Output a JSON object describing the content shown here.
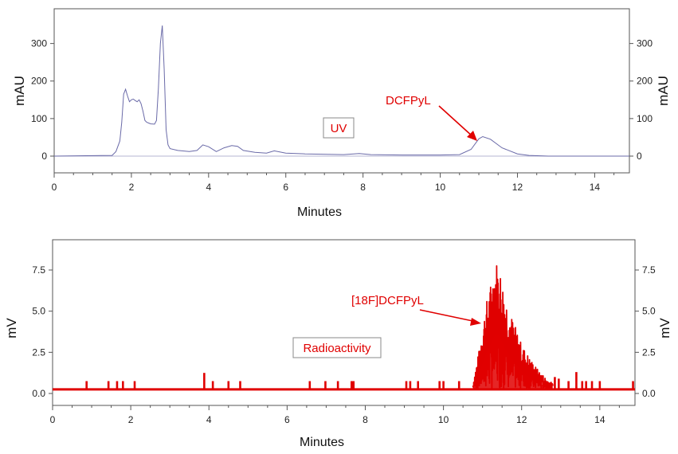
{
  "chart_data": [
    {
      "type": "line",
      "ylabel_left": "mAU",
      "ylabel_right": "mAU",
      "xlabel": "Minutes",
      "xlim": [
        0,
        14.9
      ],
      "ylim": [
        -45,
        375
      ],
      "xticks": [
        "0",
        "2",
        "4",
        "6",
        "8",
        "10",
        "12",
        "14"
      ],
      "yticks": [
        "0",
        "100",
        "200",
        "300"
      ],
      "box_label": "UV",
      "annotation": {
        "text": "DCFPyL",
        "x": 11.1,
        "y": 52
      },
      "colors": {
        "line": "#6a6aa8",
        "annotation": "#e00000"
      },
      "series": [
        {
          "x": [
            0,
            1.5,
            1.6,
            1.7,
            1.75,
            1.8,
            1.85,
            1.9,
            1.95,
            2.0,
            2.05,
            2.1,
            2.15,
            2.2,
            2.25,
            2.3,
            2.35,
            2.4,
            2.45,
            2.5,
            2.6,
            2.65,
            2.7,
            2.75,
            2.8,
            2.85,
            2.9,
            2.95,
            3.0,
            3.2,
            3.5,
            3.7,
            3.85,
            4.0,
            4.2,
            4.4,
            4.6,
            4.75,
            4.9,
            5.2,
            5.5,
            5.7,
            6.0,
            6.5,
            7.5,
            7.9,
            8.2,
            9.0,
            10.0,
            10.5,
            10.8,
            11.0,
            11.1,
            11.3,
            11.6,
            12.0,
            12.3,
            12.8,
            14.9
          ],
          "y": [
            0,
            2,
            12,
            40,
            90,
            165,
            178,
            160,
            145,
            150,
            152,
            148,
            145,
            150,
            140,
            120,
            95,
            90,
            88,
            86,
            85,
            95,
            180,
            300,
            348,
            230,
            70,
            30,
            20,
            15,
            12,
            15,
            30,
            25,
            12,
            22,
            28,
            26,
            15,
            10,
            8,
            14,
            8,
            6,
            4,
            7,
            4,
            3,
            3,
            4,
            18,
            46,
            52,
            45,
            22,
            6,
            2,
            0,
            0
          ]
        }
      ]
    },
    {
      "type": "line",
      "ylabel_left": "mV",
      "ylabel_right": "mV",
      "xlabel": "Minutes",
      "xlim": [
        0,
        14.9
      ],
      "ylim": [
        -0.95,
        9.1
      ],
      "xticks": [
        "0",
        "2",
        "4",
        "6",
        "8",
        "10",
        "12",
        "14"
      ],
      "yticks": [
        "0.0",
        "2.5",
        "5.0",
        "7.5"
      ],
      "box_label": "Radioactivity",
      "annotation": {
        "text": "[18F]DCFPyL",
        "x": 11.0,
        "y": 4.2
      },
      "colors": {
        "line": "#e00000",
        "annotation": "#e00000"
      },
      "baseline": 0.25,
      "spikes": [
        [
          0.87,
          0.75
        ],
        [
          1.43,
          0.75
        ],
        [
          1.65,
          0.75
        ],
        [
          1.8,
          0.75
        ],
        [
          2.1,
          0.75
        ],
        [
          3.88,
          1.25
        ],
        [
          4.1,
          0.75
        ],
        [
          4.5,
          0.75
        ],
        [
          4.8,
          0.75
        ],
        [
          6.58,
          0.75
        ],
        [
          6.98,
          0.75
        ],
        [
          7.3,
          0.75
        ],
        [
          7.65,
          0.75
        ],
        [
          7.7,
          0.75
        ],
        [
          9.05,
          0.75
        ],
        [
          9.15,
          0.75
        ],
        [
          9.35,
          0.75
        ],
        [
          9.9,
          0.75
        ],
        [
          10.0,
          0.75
        ],
        [
          10.4,
          0.75
        ],
        [
          12.85,
          1.0
        ],
        [
          12.95,
          0.9
        ],
        [
          13.2,
          0.75
        ],
        [
          13.4,
          1.3
        ],
        [
          13.55,
          0.75
        ],
        [
          13.65,
          0.75
        ],
        [
          13.8,
          0.75
        ],
        [
          14.0,
          0.75
        ],
        [
          14.85,
          0.75
        ]
      ],
      "envelope": {
        "x": [
          10.75,
          10.9,
          11.0,
          11.1,
          11.2,
          11.3,
          11.35,
          11.45,
          11.55,
          11.7,
          11.85,
          12.0,
          12.2,
          12.4,
          12.6,
          12.8
        ],
        "y": [
          0.6,
          2.5,
          4.2,
          5.6,
          6.6,
          7.8,
          8.2,
          7.6,
          6.4,
          5.0,
          4.0,
          3.0,
          2.2,
          1.5,
          1.0,
          0.6
        ]
      }
    }
  ]
}
